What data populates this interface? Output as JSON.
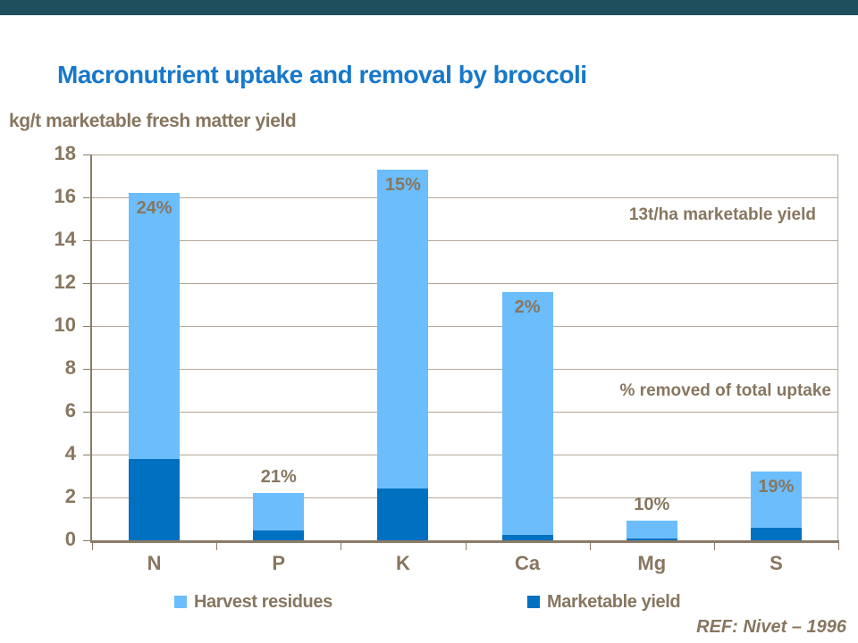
{
  "slide": {
    "top_accent_color": "#1F4E5C",
    "background_color": "#FFFFFF"
  },
  "title": "Macronutrient uptake and removal by broccoli",
  "unit_label": "kg/t marketable fresh matter yield",
  "annotations": {
    "yield_note": "13t/ha marketable yield",
    "percent_note": "% removed of total uptake"
  },
  "reference": "REF: Nivet – 1996",
  "legend": {
    "items": [
      {
        "label": "Harvest residues",
        "color": "#6CBDFC"
      },
      {
        "label": "Marketable yield",
        "color": "#0070C0"
      }
    ]
  },
  "colors": {
    "title_blue": "#1778CB",
    "text_brown": "#877660",
    "bar_light": "#6CBDFC",
    "bar_dark": "#0070C0",
    "gridline": "#B3A898",
    "axis": "#8A7B68"
  },
  "chart_data": {
    "type": "bar",
    "stacked": true,
    "title": "Macronutrient uptake and removal by broccoli",
    "ylabel": "kg/t marketable fresh matter yield",
    "xlabel": "",
    "categories": [
      "N",
      "P",
      "K",
      "Ca",
      "Mg",
      "S"
    ],
    "series": [
      {
        "name": "Marketable yield",
        "color": "#0070C0",
        "values": [
          3.8,
          0.45,
          2.4,
          0.25,
          0.09,
          0.6
        ]
      },
      {
        "name": "Harvest residues",
        "color": "#6CBDFC",
        "values": [
          12.4,
          1.75,
          14.9,
          11.35,
          0.81,
          2.6
        ]
      }
    ],
    "totals": [
      16.2,
      2.2,
      17.3,
      11.6,
      0.9,
      3.2
    ],
    "point_labels": [
      {
        "text": "24%",
        "position": "inside"
      },
      {
        "text": "21%",
        "position": "above"
      },
      {
        "text": "15%",
        "position": "inside"
      },
      {
        "text": "2%",
        "position": "inside"
      },
      {
        "text": "10%",
        "position": "above"
      },
      {
        "text": "19%",
        "position": "inside"
      }
    ],
    "ylim": [
      0,
      18
    ],
    "yticks": [
      0,
      2,
      4,
      6,
      8,
      10,
      12,
      14,
      16,
      18
    ],
    "grid": true,
    "legend_position": "bottom"
  }
}
